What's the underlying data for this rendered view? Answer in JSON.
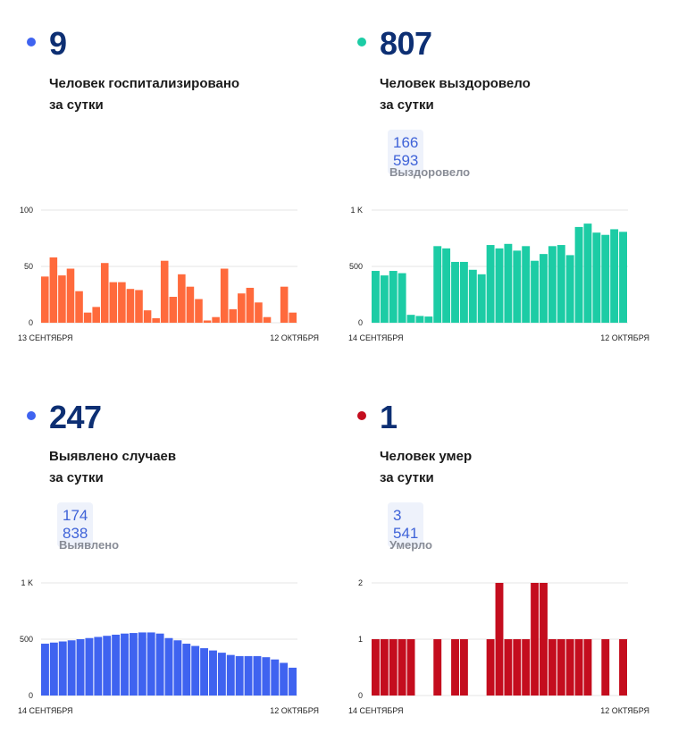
{
  "stats": [
    {
      "value": "9",
      "line1": "Человек госпитализировано",
      "line2": "за сутки",
      "dot_color": "#3f63f0"
    },
    {
      "value": "807",
      "line1": "Человек выздоровело",
      "line2": "за сутки",
      "badge": "166 593",
      "badge_label": "Выздоровело",
      "dot_color": "#1ccca5"
    },
    {
      "value": "247",
      "line1": "Выявлено случаев",
      "line2": "за сутки",
      "badge": "174 838",
      "badge_label": "Выявлено",
      "dot_color": "#3f63f0"
    },
    {
      "value": "1",
      "line1": "Человек умер",
      "line2": "за сутки",
      "badge": "3 541",
      "badge_label": "Умерло",
      "dot_color": "#c40d1e"
    }
  ],
  "chart_data": [
    {
      "type": "bar",
      "color": "#ff6a3c",
      "ylim": [
        0,
        100
      ],
      "yticks": [
        {
          "v": 0,
          "label": "0"
        },
        {
          "v": 50,
          "label": "50"
        },
        {
          "v": 100,
          "label": "100"
        }
      ],
      "x_start_label": "13 СЕНТЯБРЯ",
      "x_end_label": "12 ОКТЯБРЯ",
      "values": [
        41,
        58,
        42,
        48,
        28,
        9,
        14,
        53,
        36,
        36,
        30,
        29,
        11,
        4,
        55,
        23,
        43,
        32,
        21,
        2,
        5,
        48,
        12,
        26,
        31,
        18,
        5,
        0,
        32,
        9
      ]
    },
    {
      "type": "bar",
      "color": "#1ccca5",
      "ylim": [
        0,
        1000
      ],
      "yticks": [
        {
          "v": 0,
          "label": "0"
        },
        {
          "v": 500,
          "label": "500"
        },
        {
          "v": 1000,
          "label": "1 K"
        }
      ],
      "x_start_label": "14 СЕНТЯБРЯ",
      "x_end_label": "12 ОКТЯБРЯ",
      "values": [
        460,
        420,
        460,
        440,
        70,
        60,
        55,
        680,
        660,
        540,
        540,
        470,
        430,
        690,
        660,
        700,
        640,
        680,
        550,
        610,
        680,
        690,
        600,
        850,
        880,
        800,
        780,
        830,
        807
      ]
    },
    {
      "type": "bar",
      "color": "#3f63f0",
      "ylim": [
        0,
        1000
      ],
      "yticks": [
        {
          "v": 0,
          "label": "0"
        },
        {
          "v": 500,
          "label": "500"
        },
        {
          "v": 1000,
          "label": "1 K"
        }
      ],
      "x_start_label": "14 СЕНТЯБРЯ",
      "x_end_label": "12 ОКТЯБРЯ",
      "values": [
        460,
        470,
        480,
        490,
        500,
        510,
        520,
        530,
        540,
        550,
        555,
        560,
        560,
        550,
        510,
        490,
        460,
        440,
        420,
        400,
        380,
        360,
        350,
        350,
        350,
        340,
        320,
        290,
        247
      ]
    },
    {
      "type": "bar",
      "color": "#c40d1e",
      "ylim": [
        0,
        2
      ],
      "yticks": [
        {
          "v": 0,
          "label": "0"
        },
        {
          "v": 1,
          "label": "1"
        },
        {
          "v": 2,
          "label": "2"
        }
      ],
      "x_start_label": "14 СЕНТЯБРЯ",
      "x_end_label": "12 ОКТЯБРЯ",
      "values": [
        1,
        1,
        1,
        1,
        1,
        0,
        0,
        1,
        0,
        1,
        1,
        0,
        0,
        1,
        2,
        1,
        1,
        1,
        2,
        2,
        1,
        1,
        1,
        1,
        1,
        0,
        1,
        0,
        1
      ]
    }
  ]
}
